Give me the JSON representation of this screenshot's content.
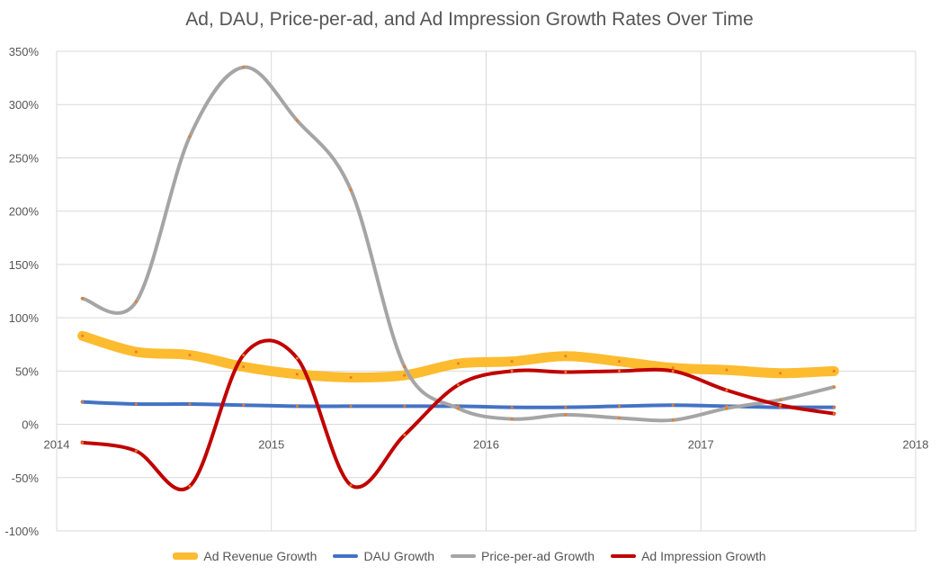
{
  "chart_data": {
    "type": "line",
    "title": "Ad, DAU, Price-per-ad, and Ad Impression Growth Rates Over Time",
    "xlabel": "",
    "ylabel": "",
    "xlim": [
      2014,
      2018
    ],
    "ylim": [
      -100,
      350
    ],
    "x_ticks": [
      "2014",
      "2015",
      "2016",
      "2017",
      "2018"
    ],
    "y_ticks": [
      "-100%",
      "-50%",
      "0%",
      "50%",
      "100%",
      "150%",
      "200%",
      "250%",
      "300%",
      "350%"
    ],
    "grid": true,
    "legend_position": "bottom",
    "x": [
      2014.12,
      2014.37,
      2014.62,
      2014.87,
      2015.12,
      2015.37,
      2015.62,
      2015.87,
      2016.12,
      2016.37,
      2016.62,
      2016.87,
      2017.12,
      2017.37,
      2017.62
    ],
    "series": [
      {
        "name": "Ad Revenue Growth",
        "color": "#FDBB2F",
        "width": 11,
        "values": [
          83,
          68,
          65,
          54,
          47,
          44,
          46,
          57,
          59,
          64,
          59,
          53,
          51,
          48,
          50
        ]
      },
      {
        "name": "DAU Growth",
        "color": "#4472C4",
        "width": 4,
        "values": [
          21,
          19,
          19,
          18,
          17,
          17,
          17,
          17,
          16,
          16,
          17,
          18,
          17,
          16,
          16
        ]
      },
      {
        "name": "Price-per-ad Growth",
        "color": "#A5A5A5",
        "width": 4,
        "values": [
          118,
          115,
          270,
          335,
          285,
          220,
          54,
          15,
          5,
          9,
          6,
          4,
          15,
          23,
          35
        ]
      },
      {
        "name": "Ad Impression Growth",
        "color": "#C00000",
        "width": 4,
        "values": [
          -17,
          -25,
          -58,
          65,
          62,
          -57,
          -10,
          37,
          50,
          49,
          50,
          50,
          32,
          18,
          10
        ]
      }
    ]
  }
}
